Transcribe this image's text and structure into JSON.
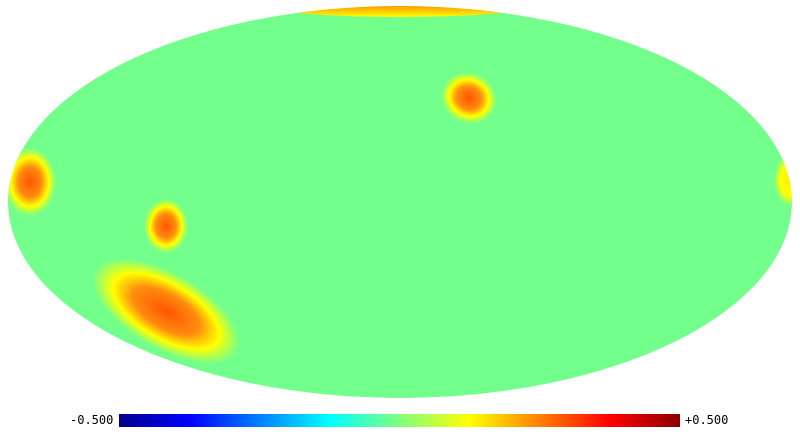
{
  "map": {
    "projection": "mollweide",
    "background_color": "#73ff8c",
    "hotspot_colors": {
      "outer": "#ffff00",
      "mid": "#ff9a1a",
      "core": "#ff5500"
    },
    "regions": [
      {
        "name": "north-pole-cap",
        "level": 0.5
      },
      {
        "name": "upper-right-spot",
        "level": 0.4
      },
      {
        "name": "left-edge-spot",
        "level": 0.35
      },
      {
        "name": "right-edge-spot",
        "level": 0.15
      },
      {
        "name": "small-left-spot",
        "level": 0.3
      },
      {
        "name": "large-lower-left-spot",
        "level": 0.4
      }
    ]
  },
  "colorbar": {
    "min_label": "-0.500",
    "max_label": "+0.500",
    "colormap": [
      "#00008b",
      "#0000ff",
      "#0080ff",
      "#00ffff",
      "#80ff80",
      "#ffff00",
      "#ff8000",
      "#ff0000",
      "#8b0000"
    ]
  }
}
